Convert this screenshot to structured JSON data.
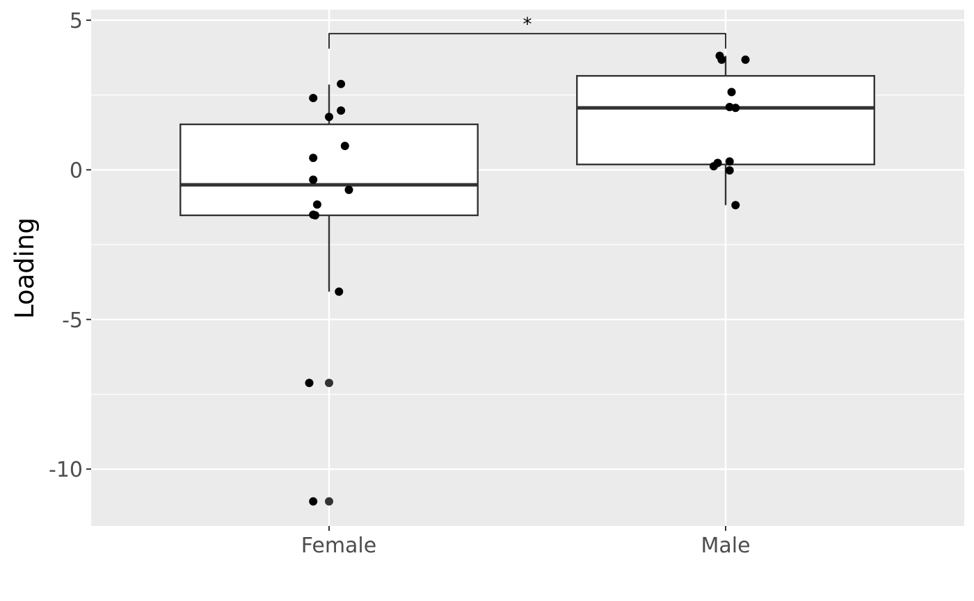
{
  "chart_data": {
    "type": "boxplot",
    "ylabel": "Loading",
    "xlabel": "",
    "ylim": [
      -11.9,
      5.35
    ],
    "y_ticks": [
      5,
      0,
      -5,
      -10
    ],
    "y_tick_labels": [
      "5",
      "0",
      "-5",
      "-10"
    ],
    "categories": [
      "Female",
      "Male"
    ],
    "boxes": [
      {
        "name": "Female",
        "q1": -1.52,
        "median": -0.5,
        "q3": 1.52,
        "whisker_low": -4.07,
        "whisker_high": 2.85,
        "outliers": [
          -7.12,
          -11.08
        ]
      },
      {
        "name": "Male",
        "q1": 0.18,
        "median": 2.07,
        "q3": 3.14,
        "whisker_low": -1.18,
        "whisker_high": 3.81,
        "outliers": []
      }
    ],
    "points": [
      {
        "group": "Female",
        "jitter": -0.04,
        "y": 2.4
      },
      {
        "group": "Female",
        "jitter": 0.03,
        "y": 2.87
      },
      {
        "group": "Female",
        "jitter": 0.03,
        "y": 1.98
      },
      {
        "group": "Female",
        "jitter": 0.0,
        "y": 1.77
      },
      {
        "group": "Female",
        "jitter": 0.04,
        "y": 0.8
      },
      {
        "group": "Female",
        "jitter": -0.04,
        "y": 0.4
      },
      {
        "group": "Female",
        "jitter": -0.04,
        "y": -0.33
      },
      {
        "group": "Female",
        "jitter": 0.05,
        "y": -0.67
      },
      {
        "group": "Female",
        "jitter": -0.03,
        "y": -1.16
      },
      {
        "group": "Female",
        "jitter": -0.04,
        "y": -1.5
      },
      {
        "group": "Female",
        "jitter": -0.035,
        "y": -1.52
      },
      {
        "group": "Female",
        "jitter": 0.025,
        "y": -4.07
      },
      {
        "group": "Female",
        "jitter": -0.05,
        "y": -7.12
      },
      {
        "group": "Female",
        "jitter": -0.04,
        "y": -11.08
      },
      {
        "group": "Male",
        "jitter": -0.015,
        "y": 3.81
      },
      {
        "group": "Male",
        "jitter": -0.01,
        "y": 3.68
      },
      {
        "group": "Male",
        "jitter": 0.05,
        "y": 3.68
      },
      {
        "group": "Male",
        "jitter": 0.015,
        "y": 2.6
      },
      {
        "group": "Male",
        "jitter": 0.01,
        "y": 2.1
      },
      {
        "group": "Male",
        "jitter": 0.025,
        "y": 2.07
      },
      {
        "group": "Male",
        "jitter": 0.01,
        "y": 0.28
      },
      {
        "group": "Male",
        "jitter": -0.02,
        "y": 0.23
      },
      {
        "group": "Male",
        "jitter": -0.03,
        "y": 0.12
      },
      {
        "group": "Male",
        "jitter": 0.01,
        "y": -0.02
      },
      {
        "group": "Male",
        "jitter": 0.025,
        "y": -1.18
      }
    ],
    "significance": {
      "label": "*",
      "from": "Female",
      "to": "Male",
      "y": 4.55,
      "tip_low": 4.05
    },
    "grid": true,
    "legend": "none",
    "colors": {
      "panel": "#ebebeb",
      "grid": "#ffffff",
      "box_fill": "#ffffff",
      "box_line": "#333333",
      "point": "#000000",
      "outlier": "#333333"
    }
  }
}
